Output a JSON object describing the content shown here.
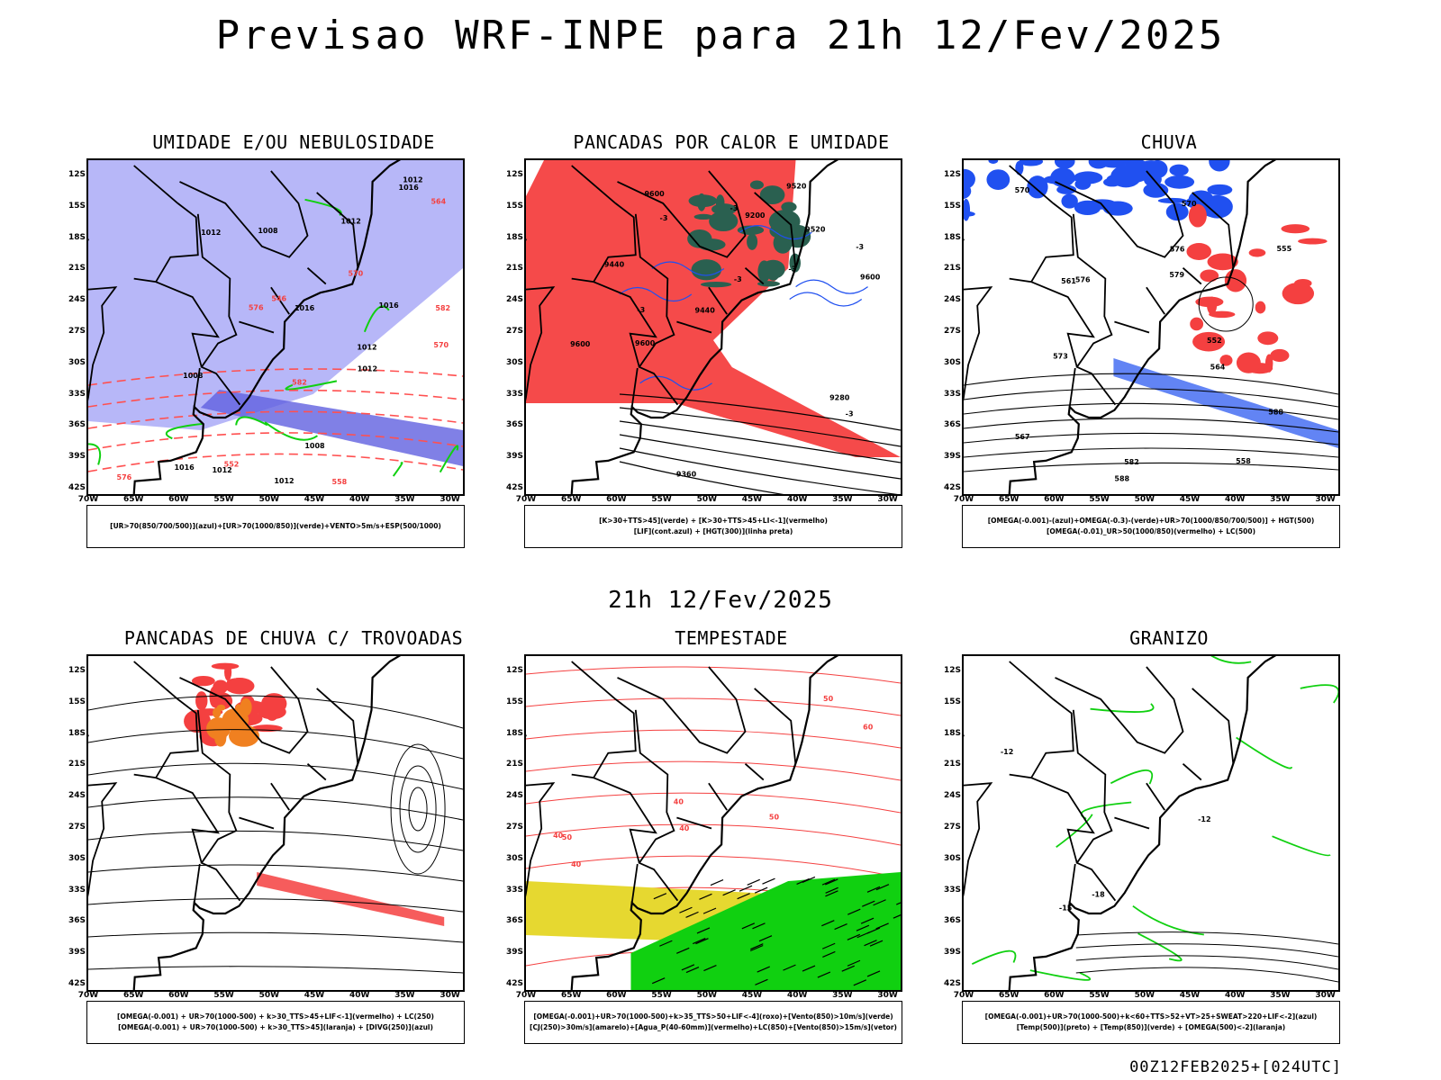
{
  "title": "Previsao WRF-INPE  para 21h 12/Fev/2025",
  "mid_title": "21h 12/Fev/2025",
  "footer": "00Z12FEB2025+[024UTC]",
  "axes": {
    "lat_ticks": [
      "12S",
      "15S",
      "18S",
      "21S",
      "24S",
      "27S",
      "30S",
      "33S",
      "36S",
      "39S",
      "42S"
    ],
    "lon_ticks": [
      "70W",
      "65W",
      "60W",
      "55W",
      "50W",
      "45W",
      "40W",
      "35W",
      "30W"
    ]
  },
  "colors": {
    "umidade_azul": "#9f9ff5",
    "umidade_azul_escuro": "#6060e0",
    "verde": "#10d010",
    "vermelho": "#f44040",
    "vermelho_tracejado": "#ff5050",
    "laranja": "#f08020",
    "azul": "#2050f0",
    "amarelo": "#e6d830",
    "verde_escuro": "#2a6050",
    "preto": "#000000"
  },
  "panels": [
    {
      "title": "UMIDADE E/OU NEBULOSIDADE",
      "legend": [
        "[UR>70(850/700/500)](azul)+[UR>70(1000/850)](verde)+VENTO>5m/s+ESP(500/1000)"
      ],
      "contour_labels": [
        "1012",
        "1012",
        "1016",
        "1008",
        "1012",
        "1012",
        "1008",
        "1016",
        "1008",
        "1012",
        "1012",
        "1016",
        "1012",
        "1016",
        "570",
        "576",
        "582",
        "558",
        "552",
        "546",
        "564",
        "570",
        "582",
        "576"
      ]
    },
    {
      "title": "PANCADAS POR CALOR E UMIDADE",
      "legend": [
        "[K>30+TTS>45](verde) + [K>30+TTS>45+LI<-1](vermelho)",
        "[LIF](cont.azul) + [HGT(300)](linha preta)"
      ],
      "contour_labels": [
        "9600",
        "9600",
        "9600",
        "9600",
        "9520",
        "9520",
        "9440",
        "9360",
        "9280",
        "9200",
        "9440",
        "-3",
        "-3",
        "-3",
        "-3",
        "-3",
        "-3",
        "-3"
      ]
    },
    {
      "title": "CHUVA",
      "legend": [
        "[OMEGA(-0.001)-(azul)+OMEGA(-0.3)-(verde)+UR>70(1000/850/700/500)] + HGT(500)",
        "[OMEGA(-0.01)_UR>50(1000/850)(vermelho) + LC(500)"
      ],
      "contour_labels": [
        "588",
        "582",
        "588",
        "576",
        "573",
        "570",
        "567",
        "564",
        "561",
        "558",
        "555",
        "552",
        "579",
        "576",
        "570"
      ]
    },
    {
      "title": "PANCADAS DE CHUVA C/ TROVOADAS",
      "legend": [
        "[OMEGA(-0.001) + UR>70(1000-500) + k>30_TTS>45+LIF<-1](vermelho) + LC(250)",
        "[OMEGA(-0.001) + UR>70(1000-500) + k>30_TTS>45](laranja) + [DIVG(250)](azul)"
      ],
      "contour_labels": []
    },
    {
      "title": "TEMPESTADE",
      "legend": [
        "[OMEGA(-0.001)+UR>70(1000-500)+k>35_TTS>50+LIF<-4](roxo)+[Vento(850)>10m/s](verde)",
        "[CJ(250)>30m/s](amarelo)+[Agua_P(40-60mm)](vermelho)+LC(850)+[Vento(850)>15m/s](vetor)"
      ],
      "contour_labels": [
        "40",
        "50",
        "50",
        "40",
        "40",
        "50",
        "60",
        "40"
      ]
    },
    {
      "title": "GRANIZO",
      "legend": [
        "[OMEGA(-0.001)+UR>70(1000-500)+k<60+TTS>52+VT>25+SWEAT>220+LIF<-2](azul)",
        "[Temp(500)](preto) + [Temp(850)](verde) + [OMEGA(500)<-2](laranja)"
      ],
      "contour_labels": [
        "-12",
        "-15",
        "-18",
        "-12"
      ]
    }
  ]
}
